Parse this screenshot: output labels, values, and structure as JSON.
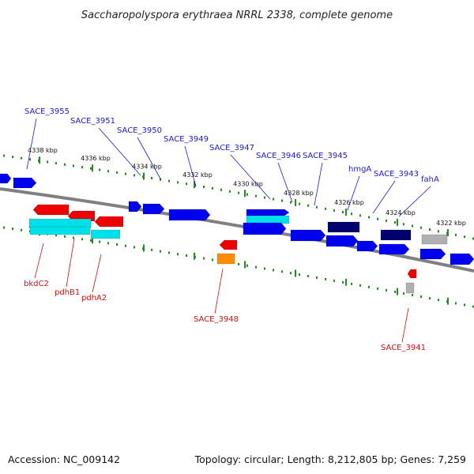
{
  "title": "Saccharopolyspora erythraea NRRL 2338, complete genome",
  "footer": {
    "accession": "Accession: NC_009142",
    "summary": "Topology: circular; Length: 8,212,805 bp; Genes: 7,259"
  },
  "colors": {
    "forward_gene": "#0000ee",
    "forward_gene_dark": "#00006e",
    "reverse_gene": "#ee0000",
    "cyan": "#00e0e8",
    "orange": "#ff8c00",
    "grey": "#b0b0b0",
    "backbone": "#808080",
    "tick": "#228b22",
    "forward_label": "#1a1acc",
    "reverse_label": "#cc1111"
  },
  "ruler": {
    "ticks": [
      "4338 kbp",
      "4336 kbp",
      "4334 kbp",
      "4332 kbp",
      "4330 kbp",
      "4328 kbp",
      "4326 kbp",
      "4324 kbp",
      "4322 kbp"
    ]
  },
  "forward_labels": [
    "SACE_3955",
    "SACE_3951",
    "SACE_3950",
    "SACE_3949",
    "SACE_3947",
    "SACE_3946",
    "SACE_3945",
    "hmgA",
    "SACE_3943",
    "fahA"
  ],
  "reverse_labels": [
    "bkdC2",
    "pdhB1",
    "pdhA2",
    "SACE_3948",
    "SACE_3941"
  ]
}
